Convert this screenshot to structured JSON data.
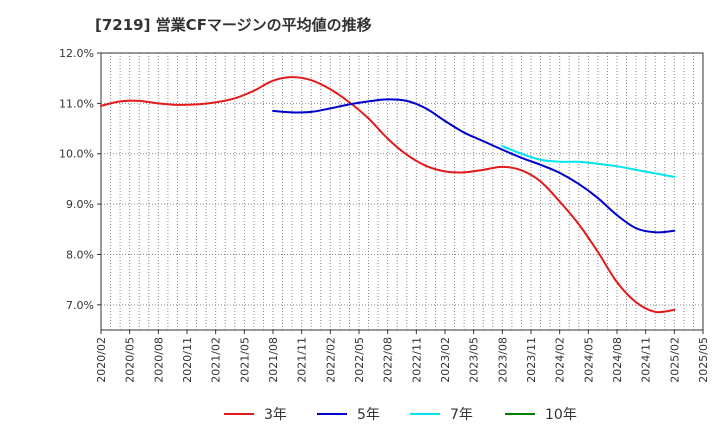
{
  "chart_data": {
    "type": "line",
    "title": "[7219]  営業CFマージンの平均値の推移",
    "xlabel": "",
    "ylabel": "",
    "ylim": [
      6.5,
      12.0
    ],
    "yticks": [
      "12.0%",
      "11.0%",
      "10.0%",
      "9.0%",
      "8.0%",
      "7.0%"
    ],
    "ytick_values": [
      12.0,
      11.0,
      10.0,
      9.0,
      8.0,
      7.0
    ],
    "xticks": [
      "2020/02",
      "2020/05",
      "2020/08",
      "2020/11",
      "2021/02",
      "2021/05",
      "2021/08",
      "2021/11",
      "2022/02",
      "2022/05",
      "2022/08",
      "2022/11",
      "2023/02",
      "2023/05",
      "2023/08",
      "2023/11",
      "2024/02",
      "2024/05",
      "2024/08",
      "2024/11",
      "2025/02",
      "2025/05"
    ],
    "grid": true,
    "legend_position": "bottom",
    "series": [
      {
        "name": "3年",
        "color": "#e31a1c",
        "x": [
          "2020/02",
          "2020/04",
          "2020/06",
          "2020/08",
          "2020/10",
          "2020/12",
          "2021/02",
          "2021/04",
          "2021/06",
          "2021/08",
          "2021/10",
          "2021/12",
          "2022/02",
          "2022/04",
          "2022/06",
          "2022/08",
          "2022/10",
          "2022/12",
          "2023/02",
          "2023/04",
          "2023/06",
          "2023/08",
          "2023/10",
          "2023/12",
          "2024/02",
          "2024/04",
          "2024/06",
          "2024/08",
          "2024/10",
          "2024/12",
          "2025/02"
        ],
        "values": [
          10.95,
          11.04,
          11.05,
          11.0,
          10.97,
          10.98,
          11.02,
          11.1,
          11.25,
          11.45,
          11.52,
          11.46,
          11.28,
          11.02,
          10.7,
          10.3,
          9.98,
          9.76,
          9.65,
          9.63,
          9.68,
          9.74,
          9.67,
          9.45,
          9.05,
          8.6,
          8.05,
          7.45,
          7.05,
          6.86,
          6.9
        ]
      },
      {
        "name": "5年",
        "color": "#0000cc",
        "x": [
          "2021/08",
          "2021/10",
          "2021/12",
          "2022/02",
          "2022/04",
          "2022/06",
          "2022/08",
          "2022/10",
          "2022/12",
          "2023/02",
          "2023/04",
          "2023/06",
          "2023/08",
          "2023/10",
          "2023/12",
          "2024/02",
          "2024/04",
          "2024/06",
          "2024/08",
          "2024/10",
          "2024/12",
          "2025/02"
        ],
        "values": [
          10.85,
          10.82,
          10.83,
          10.9,
          10.98,
          11.04,
          11.08,
          11.05,
          10.9,
          10.65,
          10.42,
          10.25,
          10.08,
          9.92,
          9.78,
          9.62,
          9.4,
          9.12,
          8.78,
          8.52,
          8.44,
          8.47
        ]
      },
      {
        "name": "7年",
        "color": "#00e5ee",
        "x": [
          "2023/08",
          "2023/10",
          "2023/12",
          "2024/02",
          "2024/04",
          "2024/06",
          "2024/08",
          "2024/10",
          "2024/12",
          "2025/02"
        ],
        "values": [
          10.15,
          10.0,
          9.88,
          9.84,
          9.84,
          9.8,
          9.75,
          9.68,
          9.61,
          9.54
        ]
      },
      {
        "name": "10年",
        "color": "#008000",
        "x": [],
        "values": []
      }
    ]
  }
}
